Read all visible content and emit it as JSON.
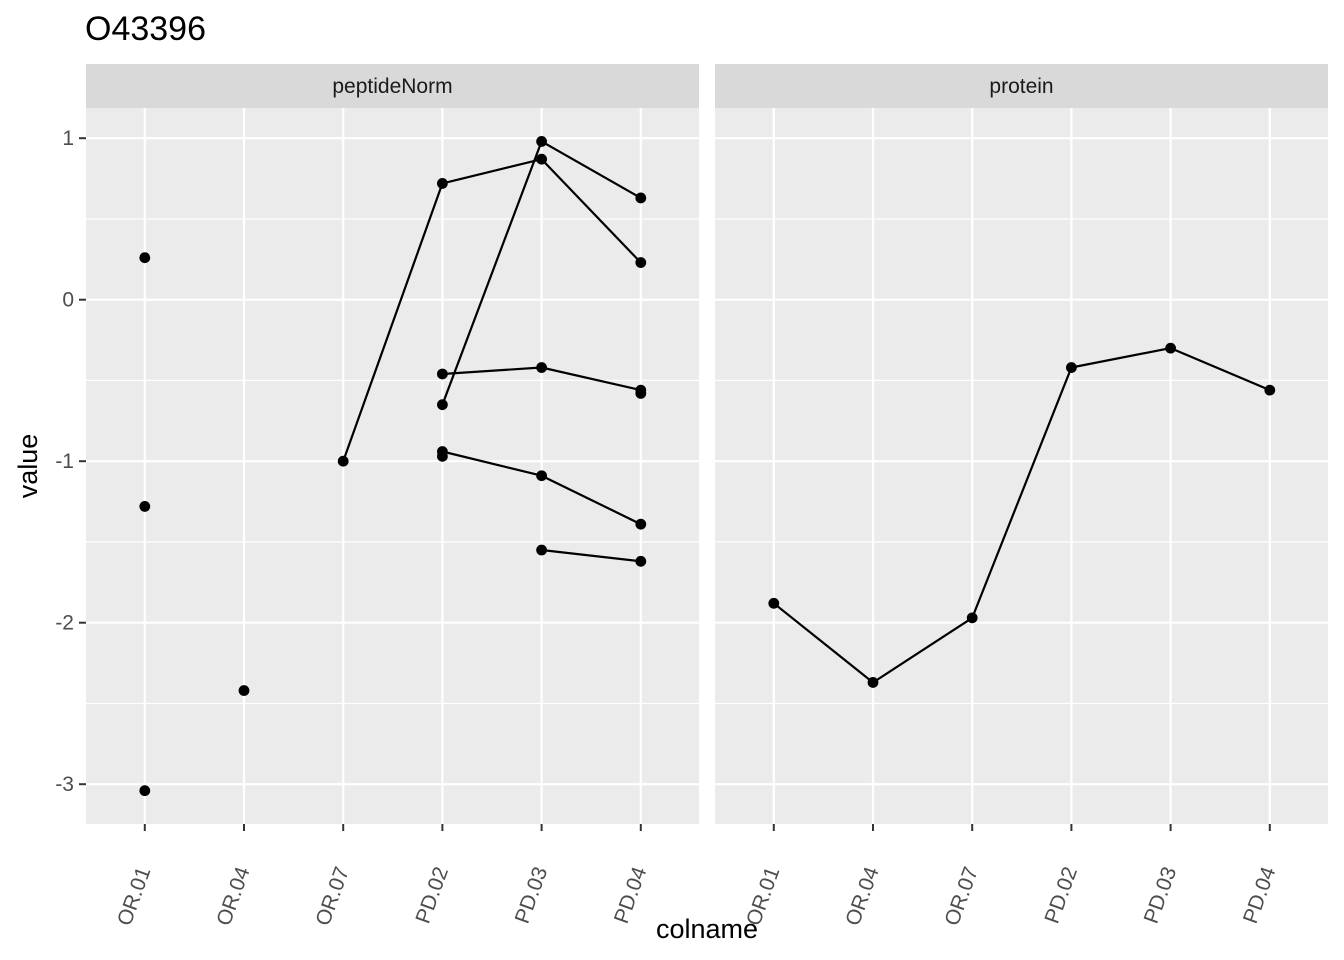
{
  "chart_data": {
    "type": "line",
    "title": "O43396",
    "xlabel": "colname",
    "ylabel": "value",
    "categories": [
      "OR.01",
      "OR.04",
      "OR.07",
      "PD.02",
      "PD.03",
      "PD.04"
    ],
    "ylim": [
      -3.25,
      1.2
    ],
    "yticks": [
      1,
      0,
      -1,
      -2,
      -3
    ],
    "ytick_labels": [
      "1",
      "0",
      "-1",
      "-2",
      "-3"
    ],
    "grid": true,
    "colors": {
      "panel_bg": "#ebebeb",
      "strip_bg": "#d9d9d9",
      "grid": "#ffffff",
      "mark": "#000000"
    },
    "panels": [
      {
        "strip_label": "peptideNorm",
        "lines": [
          [
            {
              "x": "OR.07",
              "y": -1.0
            },
            {
              "x": "PD.02",
              "y": 0.72
            },
            {
              "x": "PD.03",
              "y": 0.87
            },
            {
              "x": "PD.04",
              "y": 0.23
            }
          ],
          [
            {
              "x": "PD.02",
              "y": -0.65
            },
            {
              "x": "PD.03",
              "y": 0.98
            },
            {
              "x": "PD.04",
              "y": 0.63
            }
          ],
          [
            {
              "x": "PD.02",
              "y": -0.46
            },
            {
              "x": "PD.03",
              "y": -0.42
            },
            {
              "x": "PD.04",
              "y": -0.56
            }
          ],
          [
            {
              "x": "PD.02",
              "y": -0.94
            },
            {
              "x": "PD.03",
              "y": -1.09
            },
            {
              "x": "PD.04",
              "y": -1.39
            }
          ],
          [
            {
              "x": "PD.03",
              "y": -1.55
            },
            {
              "x": "PD.04",
              "y": -1.62
            }
          ]
        ],
        "points": [
          {
            "x": "OR.01",
            "y": 0.26
          },
          {
            "x": "OR.01",
            "y": -1.28
          },
          {
            "x": "OR.01",
            "y": -3.04
          },
          {
            "x": "OR.04",
            "y": -2.42
          },
          {
            "x": "OR.07",
            "y": -1.0
          },
          {
            "x": "PD.02",
            "y": 0.72
          },
          {
            "x": "PD.02",
            "y": -0.46
          },
          {
            "x": "PD.02",
            "y": -0.65
          },
          {
            "x": "PD.02",
            "y": -0.94
          },
          {
            "x": "PD.02",
            "y": -0.97
          },
          {
            "x": "PD.03",
            "y": 0.98
          },
          {
            "x": "PD.03",
            "y": 0.87
          },
          {
            "x": "PD.03",
            "y": -0.42
          },
          {
            "x": "PD.03",
            "y": -1.09
          },
          {
            "x": "PD.03",
            "y": -1.55
          },
          {
            "x": "PD.04",
            "y": 0.63
          },
          {
            "x": "PD.04",
            "y": 0.23
          },
          {
            "x": "PD.04",
            "y": -0.56
          },
          {
            "x": "PD.04",
            "y": -0.58
          },
          {
            "x": "PD.04",
            "y": -1.39
          },
          {
            "x": "PD.04",
            "y": -1.62
          }
        ]
      },
      {
        "strip_label": "protein",
        "lines": [
          [
            {
              "x": "OR.01",
              "y": -1.88
            },
            {
              "x": "OR.04",
              "y": -2.37
            },
            {
              "x": "OR.07",
              "y": -1.97
            },
            {
              "x": "PD.02",
              "y": -0.42
            },
            {
              "x": "PD.03",
              "y": -0.3
            },
            {
              "x": "PD.04",
              "y": -0.56
            }
          ]
        ],
        "points": [
          {
            "x": "OR.01",
            "y": -1.88
          },
          {
            "x": "OR.04",
            "y": -2.37
          },
          {
            "x": "OR.07",
            "y": -1.97
          },
          {
            "x": "PD.02",
            "y": -0.42
          },
          {
            "x": "PD.03",
            "y": -0.3
          },
          {
            "x": "PD.04",
            "y": -0.56
          }
        ]
      }
    ]
  }
}
